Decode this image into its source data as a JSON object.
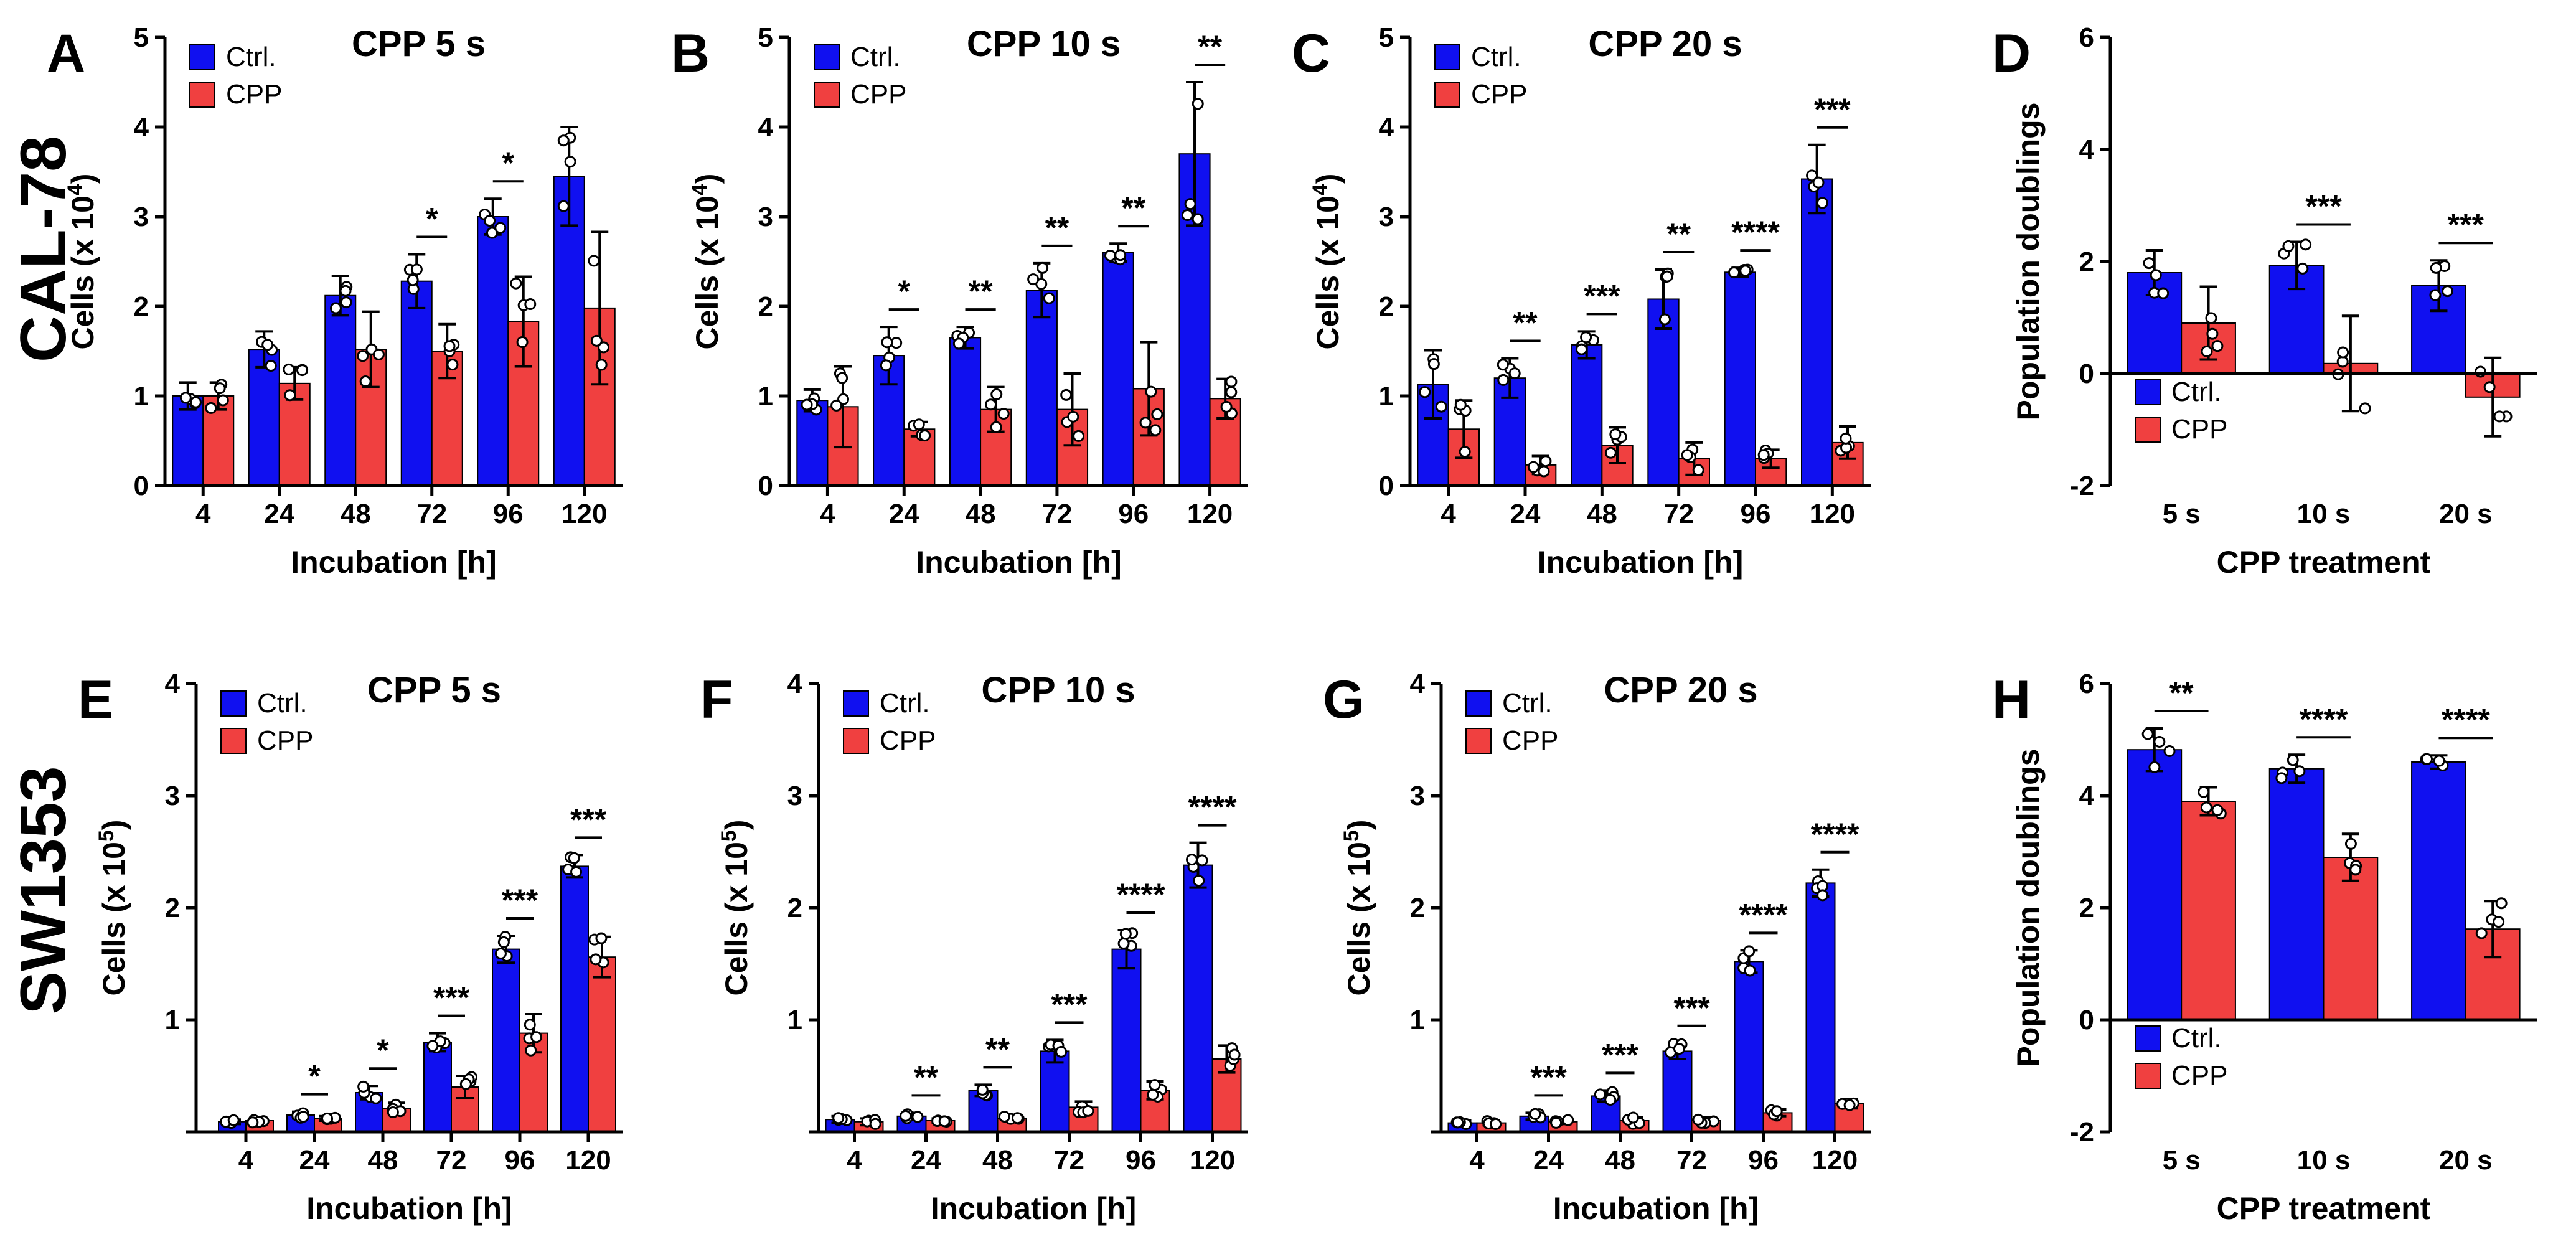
{
  "figure": {
    "row_labels": [
      "CAL-78",
      "SW1353"
    ],
    "colors": {
      "ctrl": "#1010f0",
      "cpp": "#f04040",
      "bar_edge": "#000000"
    },
    "legend_labels": {
      "ctrl": "Ctrl.",
      "cpp": "CPP"
    }
  },
  "chart_data": [
    {
      "id": "A",
      "type": "bar",
      "title": "CPP  5 s",
      "xlabel": "Incubation [h]",
      "ylabel_main": "Cells (x 10",
      "ylabel_exp": "4",
      "ylabel_end": ")",
      "categories": [
        "4",
        "24",
        "48",
        "72",
        "96",
        "120"
      ],
      "ylim": [
        0,
        5
      ],
      "yticks": [
        "0",
        "1",
        "2",
        "3",
        "4",
        "5"
      ],
      "ytick_values": [
        0,
        1,
        2,
        3,
        4,
        5
      ],
      "series": [
        {
          "name": "Ctrl.",
          "values": [
            1.0,
            1.52,
            2.12,
            2.28,
            3.0,
            3.45
          ],
          "errors": [
            0.15,
            0.2,
            0.22,
            0.3,
            0.2,
            0.55
          ]
        },
        {
          "name": "CPP",
          "values": [
            1.0,
            1.14,
            1.52,
            1.5,
            1.83,
            1.98
          ],
          "errors": [
            0.15,
            0.18,
            0.42,
            0.3,
            0.5,
            0.85
          ]
        }
      ],
      "significance": [
        "",
        "",
        "",
        "*",
        "*",
        ""
      ]
    },
    {
      "id": "B",
      "type": "bar",
      "title": "CPP  10 s",
      "xlabel": "Incubation [h]",
      "ylabel_main": "Cells (x 10",
      "ylabel_exp": "4",
      "ylabel_end": ")",
      "categories": [
        "4",
        "24",
        "48",
        "72",
        "96",
        "120"
      ],
      "ylim": [
        0,
        5
      ],
      "yticks": [
        "0",
        "1",
        "2",
        "3",
        "4",
        "5"
      ],
      "ytick_values": [
        0,
        1,
        2,
        3,
        4,
        5
      ],
      "series": [
        {
          "name": "Ctrl.",
          "values": [
            0.95,
            1.45,
            1.65,
            2.18,
            2.6,
            3.7
          ],
          "errors": [
            0.12,
            0.32,
            0.12,
            0.3,
            0.1,
            0.8
          ]
        },
        {
          "name": "CPP",
          "values": [
            0.88,
            0.63,
            0.85,
            0.85,
            1.08,
            0.97
          ],
          "errors": [
            0.45,
            0.08,
            0.25,
            0.4,
            0.52,
            0.22
          ]
        }
      ],
      "significance": [
        "",
        "*",
        "**",
        "**",
        "**",
        "**"
      ]
    },
    {
      "id": "C",
      "type": "bar",
      "title": "CPP  20 s",
      "xlabel": "Incubation [h]",
      "ylabel_main": "Cells (x 10",
      "ylabel_exp": "4",
      "ylabel_end": ")",
      "categories": [
        "4",
        "24",
        "48",
        "72",
        "96",
        "120"
      ],
      "ylim": [
        0,
        5
      ],
      "yticks": [
        "0",
        "1",
        "2",
        "3",
        "4",
        "5"
      ],
      "ytick_values": [
        0,
        1,
        2,
        3,
        4,
        5
      ],
      "series": [
        {
          "name": "Ctrl.",
          "values": [
            1.13,
            1.2,
            1.57,
            2.08,
            2.38,
            3.42
          ],
          "errors": [
            0.38,
            0.22,
            0.15,
            0.33,
            0.05,
            0.38
          ]
        },
        {
          "name": "CPP",
          "values": [
            0.63,
            0.23,
            0.45,
            0.3,
            0.3,
            0.48
          ],
          "errors": [
            0.32,
            0.1,
            0.2,
            0.18,
            0.1,
            0.18
          ]
        }
      ],
      "significance": [
        "",
        "**",
        "***",
        "**",
        "****",
        "***"
      ]
    },
    {
      "id": "D",
      "type": "bar",
      "title": "",
      "xlabel": "CPP treatment",
      "ylabel_main": "Population doublings",
      "ylabel_exp": "",
      "ylabel_end": "",
      "categories": [
        "5 s",
        "10 s",
        "20 s"
      ],
      "ylim": [
        -2,
        6
      ],
      "yticks": [
        "-2",
        "0",
        "2",
        "4",
        "6"
      ],
      "ytick_values": [
        -2,
        0,
        2,
        4,
        6
      ],
      "series": [
        {
          "name": "Ctrl.",
          "values": [
            1.8,
            1.93,
            1.57
          ],
          "errors": [
            0.4,
            0.42,
            0.45
          ]
        },
        {
          "name": "CPP",
          "values": [
            0.9,
            0.18,
            -0.42
          ],
          "errors": [
            0.65,
            0.85,
            0.7
          ]
        }
      ],
      "significance": [
        "",
        "***",
        "***"
      ]
    },
    {
      "id": "E",
      "type": "bar",
      "title": "CPP  5 s",
      "xlabel": "Incubation [h]",
      "ylabel_main": "Cells (x 10",
      "ylabel_exp": "5",
      "ylabel_end": ")",
      "categories": [
        "4",
        "24",
        "48",
        "72",
        "96",
        "120"
      ],
      "ylim": [
        0,
        4
      ],
      "yticks": [
        "1",
        "2",
        "3",
        "4"
      ],
      "ytick_values": [
        1,
        2,
        3,
        4
      ],
      "series": [
        {
          "name": "Ctrl.",
          "values": [
            0.09,
            0.15,
            0.35,
            0.8,
            1.63,
            2.37
          ],
          "errors": [
            0.02,
            0.03,
            0.06,
            0.08,
            0.12,
            0.1
          ]
        },
        {
          "name": "CPP",
          "values": [
            0.1,
            0.12,
            0.21,
            0.4,
            0.88,
            1.56
          ],
          "errors": [
            0.02,
            0.02,
            0.05,
            0.1,
            0.17,
            0.18
          ]
        }
      ],
      "significance": [
        "",
        "*",
        "*",
        "***",
        "***",
        "***"
      ]
    },
    {
      "id": "F",
      "type": "bar",
      "title": "CPP  10 s",
      "xlabel": "Incubation [h]",
      "ylabel_main": "Cells (x 10",
      "ylabel_exp": "5",
      "ylabel_end": ")",
      "categories": [
        "4",
        "24",
        "48",
        "72",
        "96",
        "120"
      ],
      "ylim": [
        0,
        4
      ],
      "yticks": [
        "1",
        "2",
        "3",
        "4"
      ],
      "ytick_values": [
        1,
        2,
        3,
        4
      ],
      "series": [
        {
          "name": "Ctrl.",
          "values": [
            0.11,
            0.14,
            0.37,
            0.72,
            1.63,
            2.38
          ],
          "errors": [
            0.03,
            0.03,
            0.05,
            0.1,
            0.17,
            0.2
          ]
        },
        {
          "name": "CPP",
          "values": [
            0.09,
            0.1,
            0.12,
            0.22,
            0.37,
            0.65
          ],
          "errors": [
            0.03,
            0.02,
            0.03,
            0.05,
            0.08,
            0.12
          ]
        }
      ],
      "significance": [
        "",
        "**",
        "**",
        "***",
        "****",
        "****"
      ]
    },
    {
      "id": "G",
      "type": "bar",
      "title": "CPP  20 s",
      "xlabel": "Incubation [h]",
      "ylabel_main": "Cells (x 10",
      "ylabel_exp": "5",
      "ylabel_end": ")",
      "categories": [
        "4",
        "24",
        "48",
        "72",
        "96",
        "120"
      ],
      "ylim": [
        0,
        4
      ],
      "yticks": [
        "1",
        "2",
        "3",
        "4"
      ],
      "ytick_values": [
        1,
        2,
        3,
        4
      ],
      "series": [
        {
          "name": "Ctrl.",
          "values": [
            0.08,
            0.14,
            0.32,
            0.72,
            1.52,
            2.22
          ],
          "errors": [
            0.02,
            0.03,
            0.05,
            0.07,
            0.1,
            0.12
          ]
        },
        {
          "name": "CPP",
          "values": [
            0.08,
            0.09,
            0.1,
            0.1,
            0.17,
            0.25
          ],
          "errors": [
            0.02,
            0.02,
            0.03,
            0.03,
            0.03,
            0.04
          ]
        }
      ],
      "significance": [
        "",
        "***",
        "***",
        "***",
        "****",
        "****"
      ]
    },
    {
      "id": "H",
      "type": "bar",
      "title": "",
      "xlabel": "CPP treatment",
      "ylabel_main": "Population doublings",
      "ylabel_exp": "",
      "ylabel_end": "",
      "categories": [
        "5 s",
        "10 s",
        "20 s"
      ],
      "ylim": [
        -2,
        6
      ],
      "yticks": [
        "-2",
        "0",
        "2",
        "4",
        "6"
      ],
      "ytick_values": [
        -2,
        0,
        2,
        4,
        6
      ],
      "series": [
        {
          "name": "Ctrl.",
          "values": [
            4.82,
            4.48,
            4.6
          ],
          "errors": [
            0.38,
            0.25,
            0.12
          ]
        },
        {
          "name": "CPP",
          "values": [
            3.9,
            2.9,
            1.62
          ],
          "errors": [
            0.25,
            0.42,
            0.5
          ]
        }
      ],
      "significance": [
        "**",
        "****",
        "****"
      ]
    }
  ]
}
